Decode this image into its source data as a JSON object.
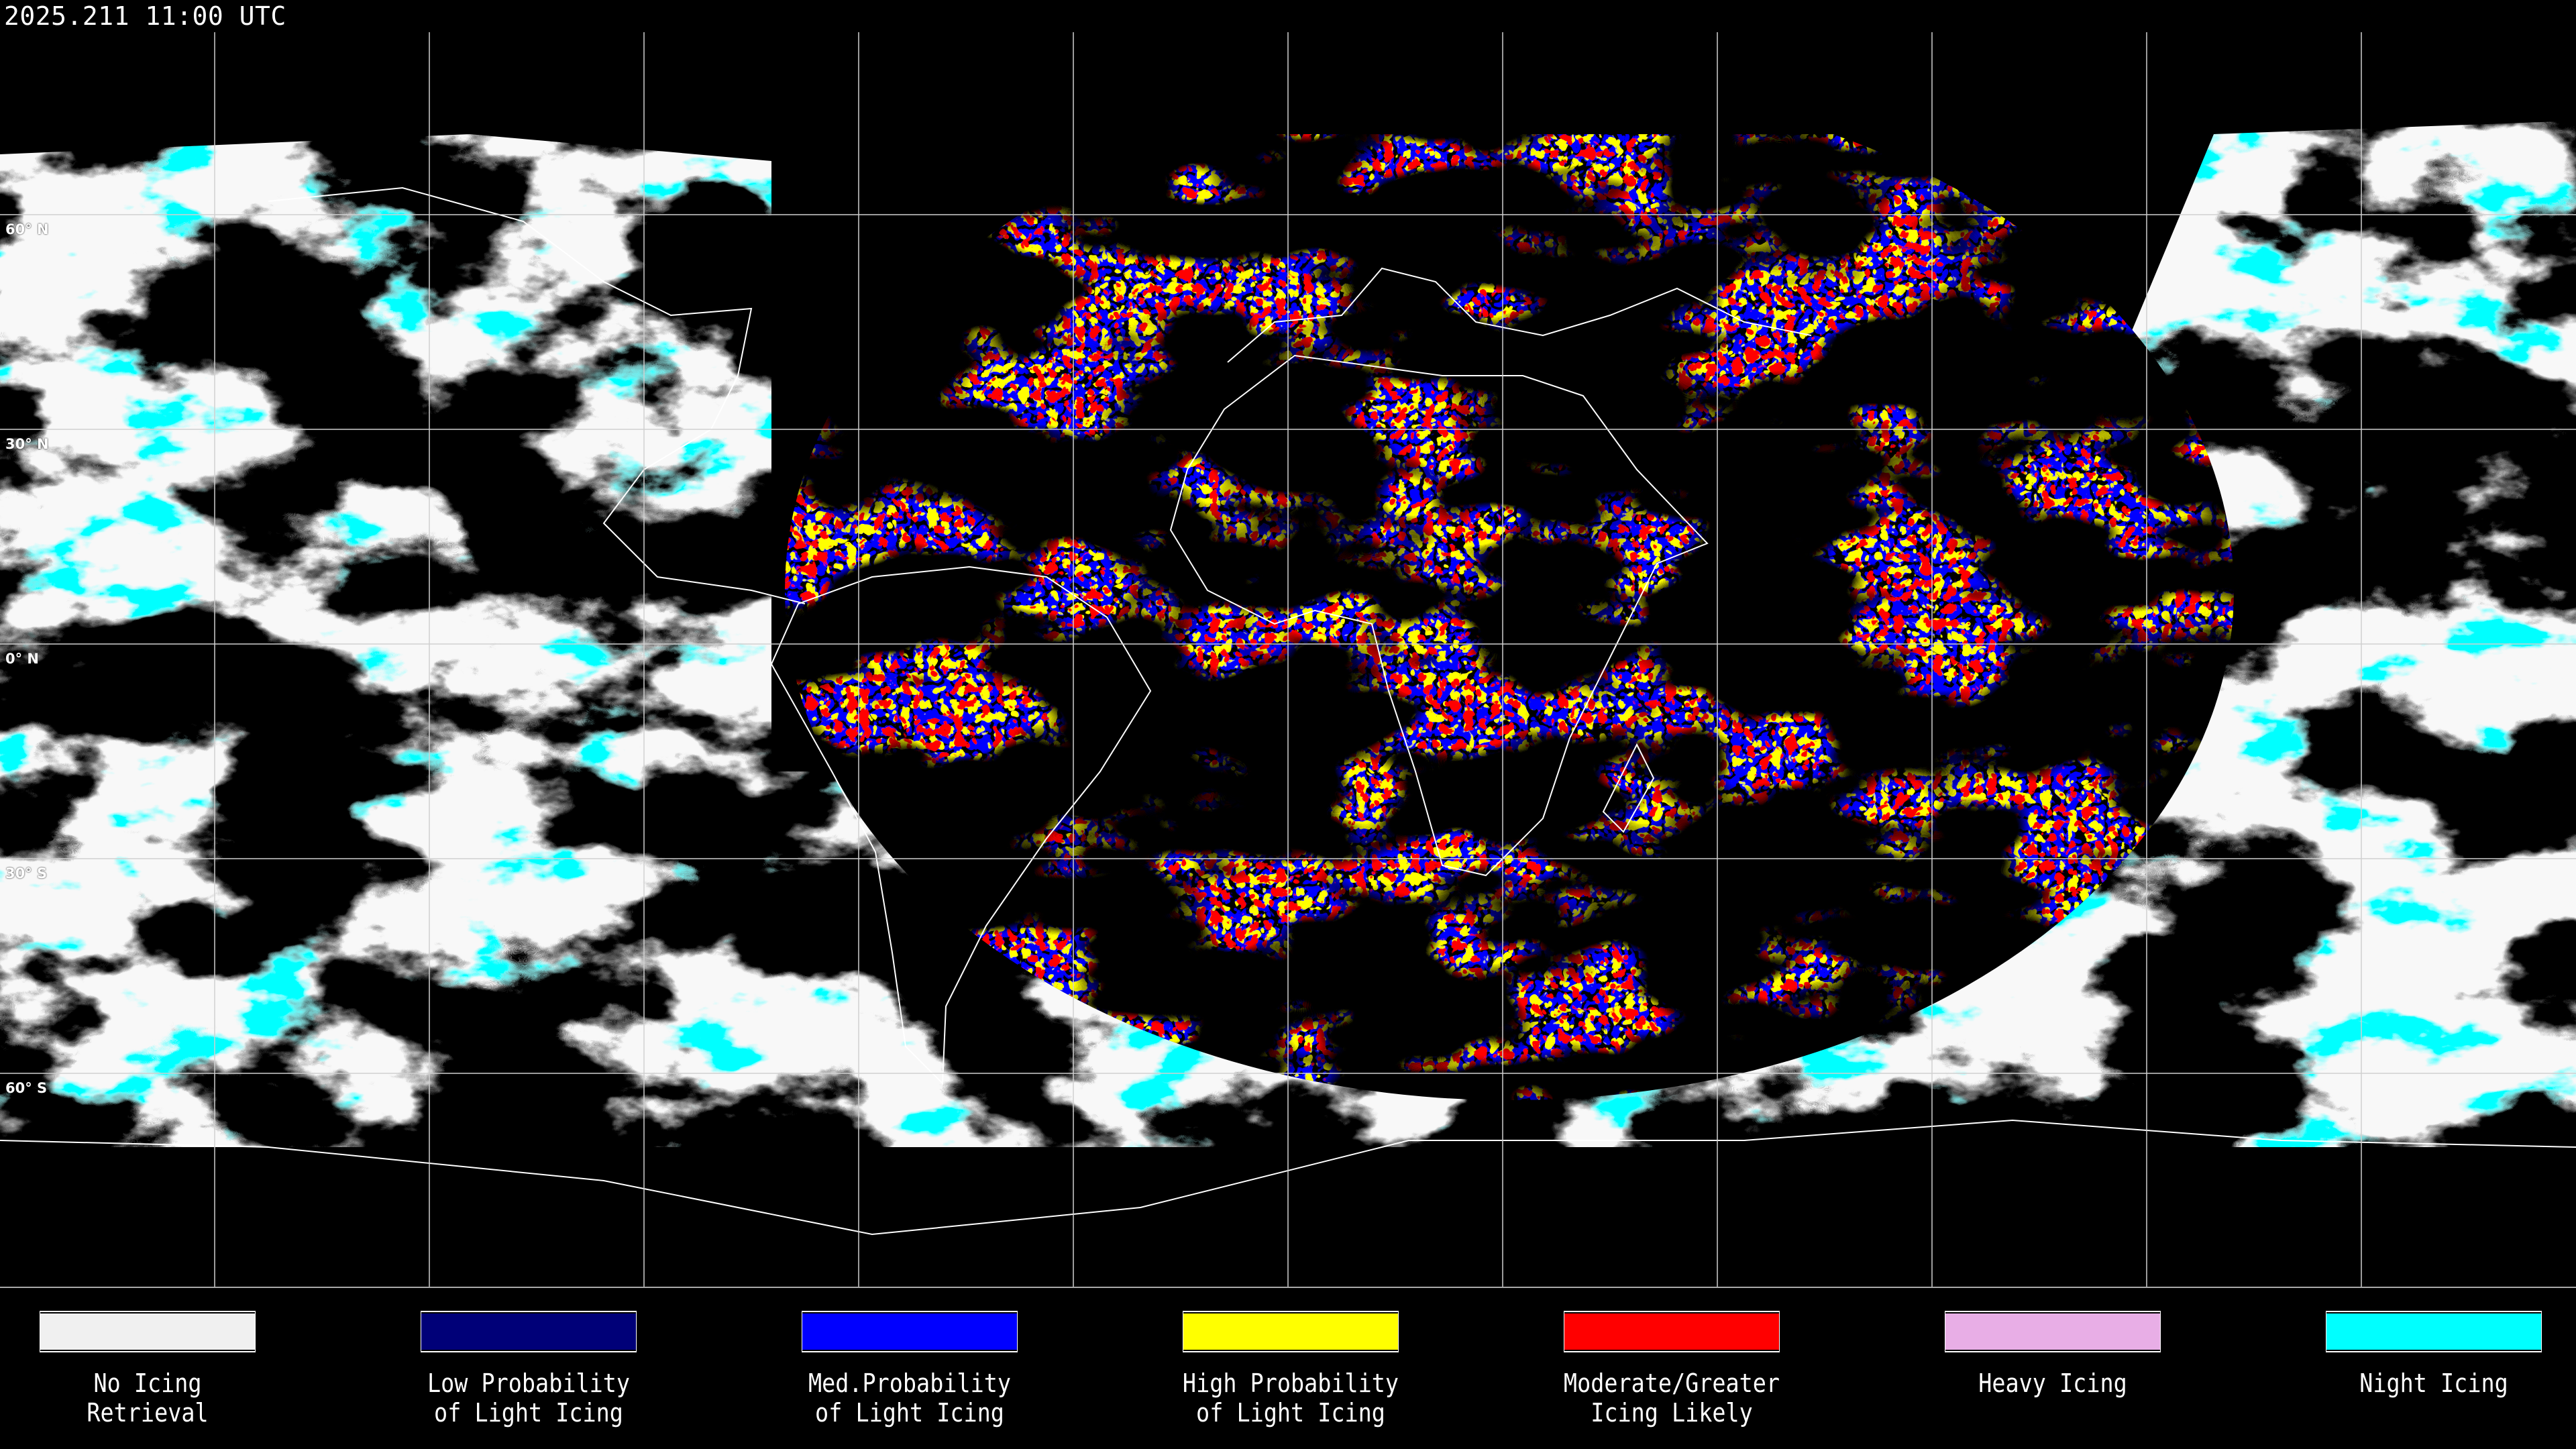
{
  "timestamp": "2025.211 11:00 UTC",
  "lat_labels": [
    "60° N",
    "30° N",
    "0° N",
    "30° S",
    "60° S"
  ],
  "colors": {
    "background": "#000000",
    "grid": "#d0d0d0",
    "coastline": "#ffffff"
  },
  "legend": [
    {
      "line1": "No Icing",
      "line2": "Retrieval",
      "color": "#f0f0f0"
    },
    {
      "line1": "Low Probability",
      "line2": "of Light Icing",
      "color": "#000078"
    },
    {
      "line1": "Med.Probability",
      "line2": "of Light Icing",
      "color": "#0000ff"
    },
    {
      "line1": "High Probability",
      "line2": "of Light Icing",
      "color": "#ffff00"
    },
    {
      "line1": "Moderate/Greater",
      "line2": "Icing Likely",
      "color": "#ff0000"
    },
    {
      "line1": "Heavy Icing",
      "line2": "",
      "color": "#e8aee6"
    },
    {
      "line1": "Night Icing",
      "line2": "",
      "color": "#00ffff"
    }
  ]
}
